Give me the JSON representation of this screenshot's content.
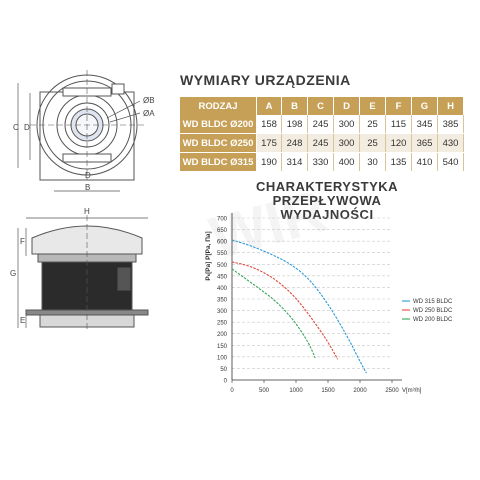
{
  "drawing_labels": {
    "top": {
      "C": "C",
      "D": "D",
      "B": "B",
      "diam_b": "ØB",
      "diam_a": "ØA"
    },
    "side": {
      "H": "H",
      "F1": "F",
      "G": "G",
      "E": "E"
    }
  },
  "dims_section": {
    "title": "WYMIARY URZĄDZENIA",
    "headers": [
      "RODZAJ",
      "A",
      "B",
      "C",
      "D",
      "E",
      "F",
      "G",
      "H"
    ],
    "rows": [
      {
        "model": "WD BLDC Ø200",
        "values": [
          "158",
          "198",
          "245",
          "300",
          "25",
          "115",
          "345",
          "385"
        ]
      },
      {
        "model": "WD BLDC Ø250",
        "values": [
          "175",
          "248",
          "245",
          "300",
          "25",
          "120",
          "365",
          "430"
        ]
      },
      {
        "model": "WD BLDC Ø315",
        "values": [
          "190",
          "314",
          "330",
          "400",
          "30",
          "135",
          "410",
          "540"
        ]
      }
    ]
  },
  "chart_section": {
    "title_line1": "CHARAKTERYSTYKA",
    "title_line2": "PRZEPŁYWOWA WYDAJNOŚCI"
  },
  "chart_data": {
    "type": "line",
    "xlabel": "V[m³/h]",
    "ylabel": "Pₛ[Pa] P[Pa, Па]",
    "xlim": [
      0,
      2500
    ],
    "ylim": [
      0,
      700
    ],
    "x_ticks": [
      "0",
      "500",
      "1000",
      "1500",
      "2000",
      "2500"
    ],
    "y_ticks": [
      "0",
      "50",
      "100",
      "150",
      "200",
      "250",
      "300",
      "350",
      "400",
      "450",
      "500",
      "550",
      "600",
      "650",
      "700"
    ],
    "grid": "horizontal dashed",
    "legend_position": "right",
    "series": [
      {
        "name": "WD 315 BLDC",
        "color": "#2e9ad6",
        "x": [
          0,
          300,
          600,
          900,
          1200,
          1500,
          1800,
          2000,
          2100
        ],
        "y": [
          605,
          580,
          545,
          505,
          440,
          330,
          190,
          80,
          30
        ]
      },
      {
        "name": "WD 250 BLDC",
        "color": "#e04a3c",
        "x": [
          0,
          250,
          500,
          750,
          1000,
          1250,
          1500,
          1650
        ],
        "y": [
          510,
          495,
          465,
          420,
          355,
          265,
          165,
          90
        ]
      },
      {
        "name": "WD 200 BLDC",
        "color": "#3aa55a",
        "x": [
          0,
          200,
          400,
          600,
          800,
          1000,
          1200,
          1300
        ],
        "y": [
          480,
          440,
          400,
          360,
          310,
          245,
          160,
          95
        ]
      }
    ]
  },
  "colors": {
    "accent": "#c7a058",
    "drawing_line": "#555555"
  },
  "watermark": "WIR"
}
